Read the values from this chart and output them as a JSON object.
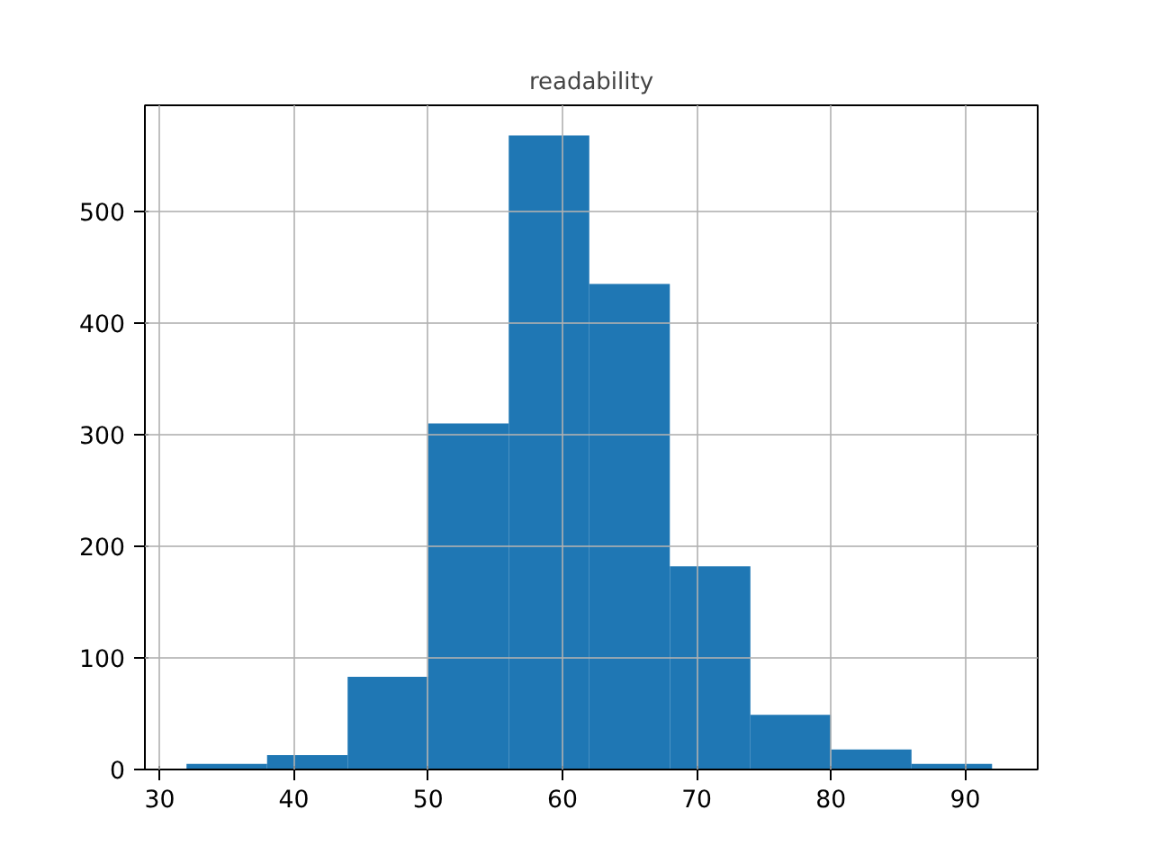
{
  "chart_data": {
    "type": "histogram",
    "title": "readability",
    "bins": [
      32,
      38,
      44,
      50,
      56,
      62,
      68,
      74,
      80,
      86,
      92
    ],
    "values": [
      5,
      13,
      83,
      310,
      568,
      435,
      182,
      49,
      18,
      5
    ],
    "color": "#1f77b4",
    "xlim": [
      28.9,
      95.4
    ],
    "ylim": [
      0,
      595
    ],
    "xticks": [
      30,
      40,
      50,
      60,
      70,
      80,
      90
    ],
    "yticks": [
      0,
      100,
      200,
      300,
      400,
      500
    ],
    "grid": true
  }
}
